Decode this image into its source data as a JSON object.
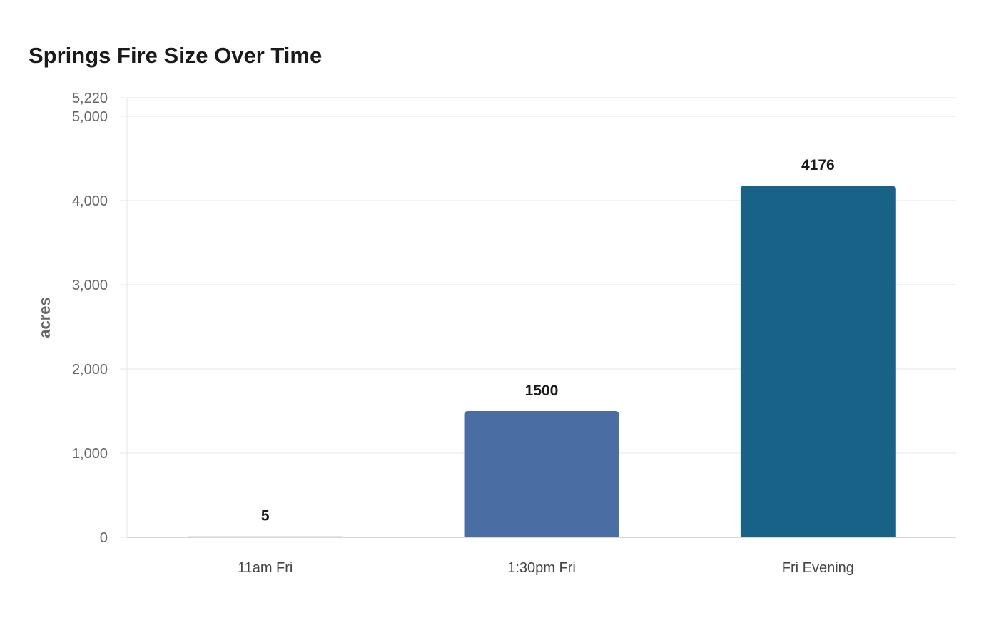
{
  "chart_data": {
    "type": "bar",
    "title": "Springs Fire Size Over Time",
    "xlabel": "",
    "ylabel": "acres",
    "categories": [
      "11am Fri",
      "1:30pm Fri",
      "Fri Evening"
    ],
    "values": [
      5,
      1500,
      4176
    ],
    "data_labels": [
      "5",
      "1500",
      "4176"
    ],
    "bar_colors": [
      "#cccccc",
      "#4a6ea3",
      "#186187"
    ],
    "ylim": [
      0,
      5220
    ],
    "yticks": [
      0,
      1000,
      2000,
      3000,
      4000,
      5000,
      5220
    ],
    "ytick_labels": [
      "0",
      "1,000",
      "2,000",
      "3,000",
      "4,000",
      "5,000",
      "5,220"
    ],
    "grid": true,
    "legend": "none"
  }
}
